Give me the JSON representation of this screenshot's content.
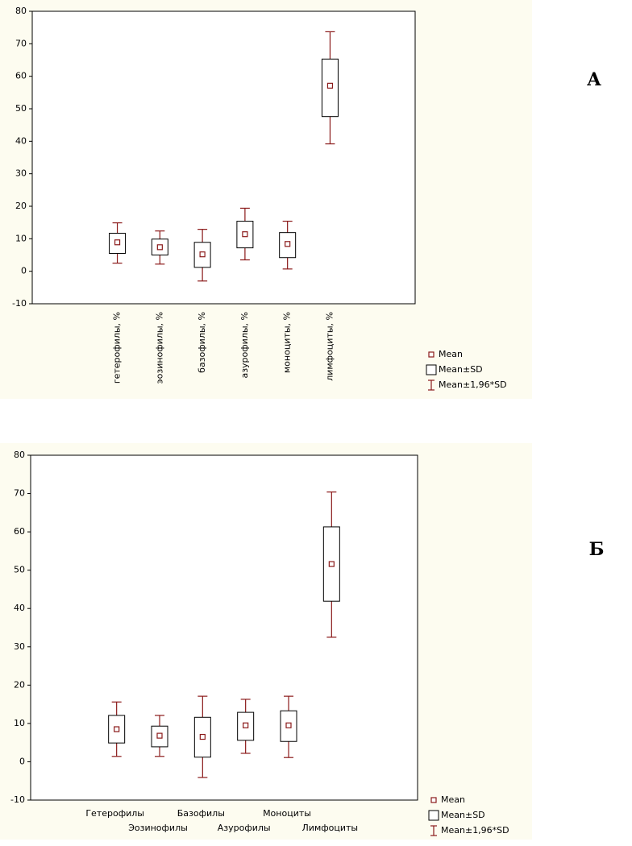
{
  "chart_data": [
    {
      "type": "box",
      "panel_label": "А",
      "label_orientation": "vertical",
      "color": "#8b1a1a",
      "categories": [
        "гетерофилы, %",
        "эозинофилы, %",
        "базофилы, %",
        "азурофилы, %",
        "моноциты, %",
        "лимфоциты, %"
      ],
      "series": [
        {
          "name": "Mean",
          "values": [
            8.9,
            7.4,
            5.2,
            11.4,
            8.4,
            57.1
          ]
        }
      ],
      "box_low": [
        5.5,
        5.0,
        1.2,
        7.2,
        4.2,
        47.6
      ],
      "box_high": [
        11.7,
        9.9,
        8.9,
        15.4,
        11.9,
        65.3
      ],
      "whisker_low": [
        2.5,
        2.2,
        -3.0,
        3.5,
        0.7,
        39.2
      ],
      "whisker_high": [
        14.9,
        12.4,
        12.9,
        19.4,
        15.4,
        73.7
      ],
      "legend_labels": [
        "Mean",
        "Mean±SD",
        "Mean±1,96*SD"
      ],
      "ylim": [
        -10,
        80
      ],
      "yticks": [
        -10,
        0,
        10,
        20,
        30,
        40,
        50,
        60,
        70,
        80
      ]
    },
    {
      "type": "box",
      "panel_label": "Б",
      "label_orientation": "staggered",
      "color": "#8b1a1a",
      "categories": [
        "Гетерофилы",
        "Эозинофилы",
        "Базофилы",
        "Азурофилы",
        "Моноциты",
        "Лимфоциты"
      ],
      "series": [
        {
          "name": "Mean",
          "values": [
            8.5,
            6.8,
            6.5,
            9.5,
            9.5,
            51.6
          ]
        }
      ],
      "box_low": [
        4.9,
        3.9,
        1.2,
        5.6,
        5.3,
        41.9
      ],
      "box_high": [
        12.1,
        9.3,
        11.6,
        12.9,
        13.3,
        61.3
      ],
      "whisker_low": [
        1.4,
        1.4,
        -4.1,
        2.2,
        1.1,
        32.5
      ],
      "whisker_high": [
        15.6,
        12.1,
        17.1,
        16.3,
        17.1,
        70.4
      ],
      "legend_labels": [
        "Mean",
        "Mean±SD",
        "Mean±1,96*SD"
      ],
      "ylim": [
        -10,
        80
      ],
      "yticks": [
        -10,
        0,
        10,
        20,
        30,
        40,
        50,
        60,
        70,
        80
      ]
    }
  ]
}
